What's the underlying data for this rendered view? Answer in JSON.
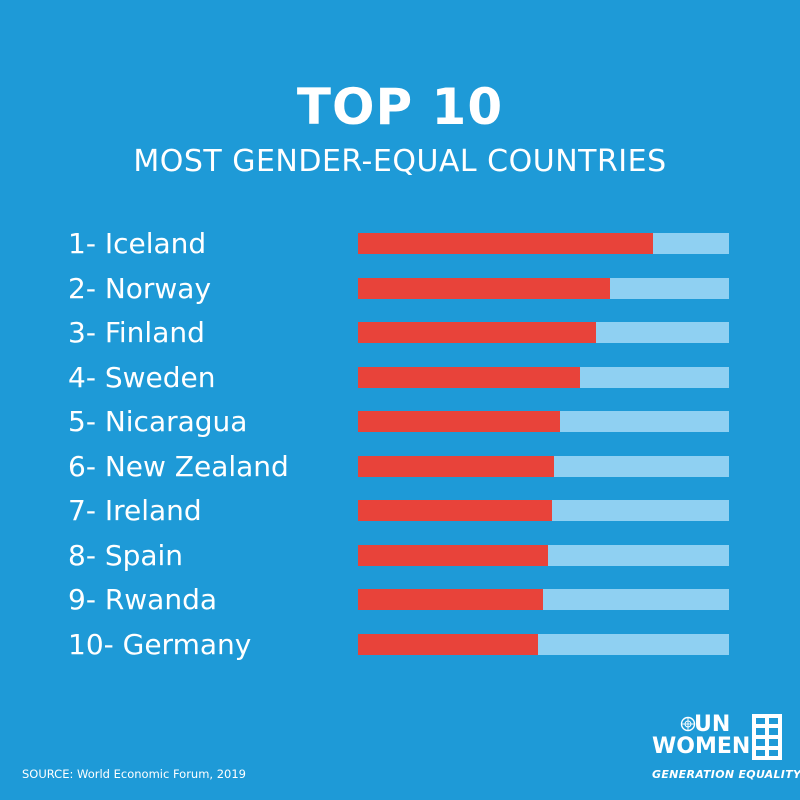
{
  "header": {
    "title": "TOP 10",
    "subtitle": "MOST GENDER-EQUAL COUNTRIES"
  },
  "chart_data": {
    "type": "bar",
    "orientation": "horizontal",
    "title": "TOP 10",
    "subtitle": "MOST GENDER-EQUAL COUNTRIES",
    "categories": [
      "1- Iceland",
      "2- Norway",
      "3- Finland",
      "4- Sweden",
      "5- Nicaragua",
      "6- New Zealand",
      "7- Ireland",
      "8- Spain",
      "9- Rwanda",
      "10- Germany"
    ],
    "values": [
      0.795,
      0.678,
      0.641,
      0.599,
      0.544,
      0.527,
      0.523,
      0.512,
      0.498,
      0.486
    ],
    "xlim": [
      0,
      1
    ],
    "grid": false,
    "legend": "none",
    "colors": {
      "fill": "#e8433a",
      "track": "#8fd0f2"
    }
  },
  "footer": {
    "source": "SOURCE: World Economic Forum, 2019",
    "logo": {
      "line1": "UN",
      "line2": "WOMEN",
      "tagline": "GENERATION EQUALITY",
      "emblem_icon": "un-emblem-icon",
      "mark_icon": "equality-mark-icon"
    }
  },
  "colors": {
    "background": "#1e9ad7",
    "text": "#ffffff"
  }
}
